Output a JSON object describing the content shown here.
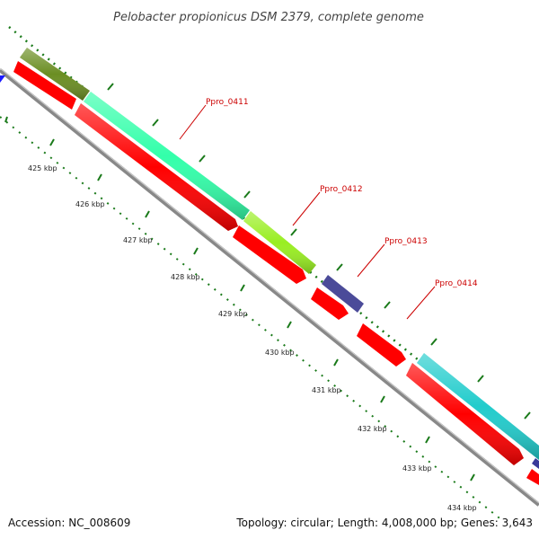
{
  "header": {
    "title": "Pelobacter propionicus DSM 2379, complete genome"
  },
  "footer": {
    "accession": "Accession: NC_008609",
    "summary": "Topology: circular; Length: 4,008,000 bp; Genes: 3,643"
  },
  "scale": {
    "ticks": [
      "425 kbp",
      "426 kbp",
      "427 kbp",
      "428 kbp",
      "429 kbp",
      "430 kbp",
      "431 kbp",
      "432 kbp",
      "433 kbp",
      "434 kbp"
    ]
  },
  "genes": [
    {
      "name": "Ppro_0411"
    },
    {
      "name": "Ppro_0412"
    },
    {
      "name": "Ppro_0413"
    },
    {
      "name": "Ppro_0414"
    }
  ],
  "colors": {
    "cds_forward": "#ff0000",
    "backbone": "#888888",
    "tick_green": "#1a7a1a",
    "label_red": "#cc0000",
    "feature_olive": "#6b8e23",
    "feature_teal": "#33ffaa",
    "feature_lime": "#99ee22",
    "feature_indigo": "#4b4b99",
    "feature_cyan": "#22cccc",
    "feature_blue": "#1a1aff"
  }
}
